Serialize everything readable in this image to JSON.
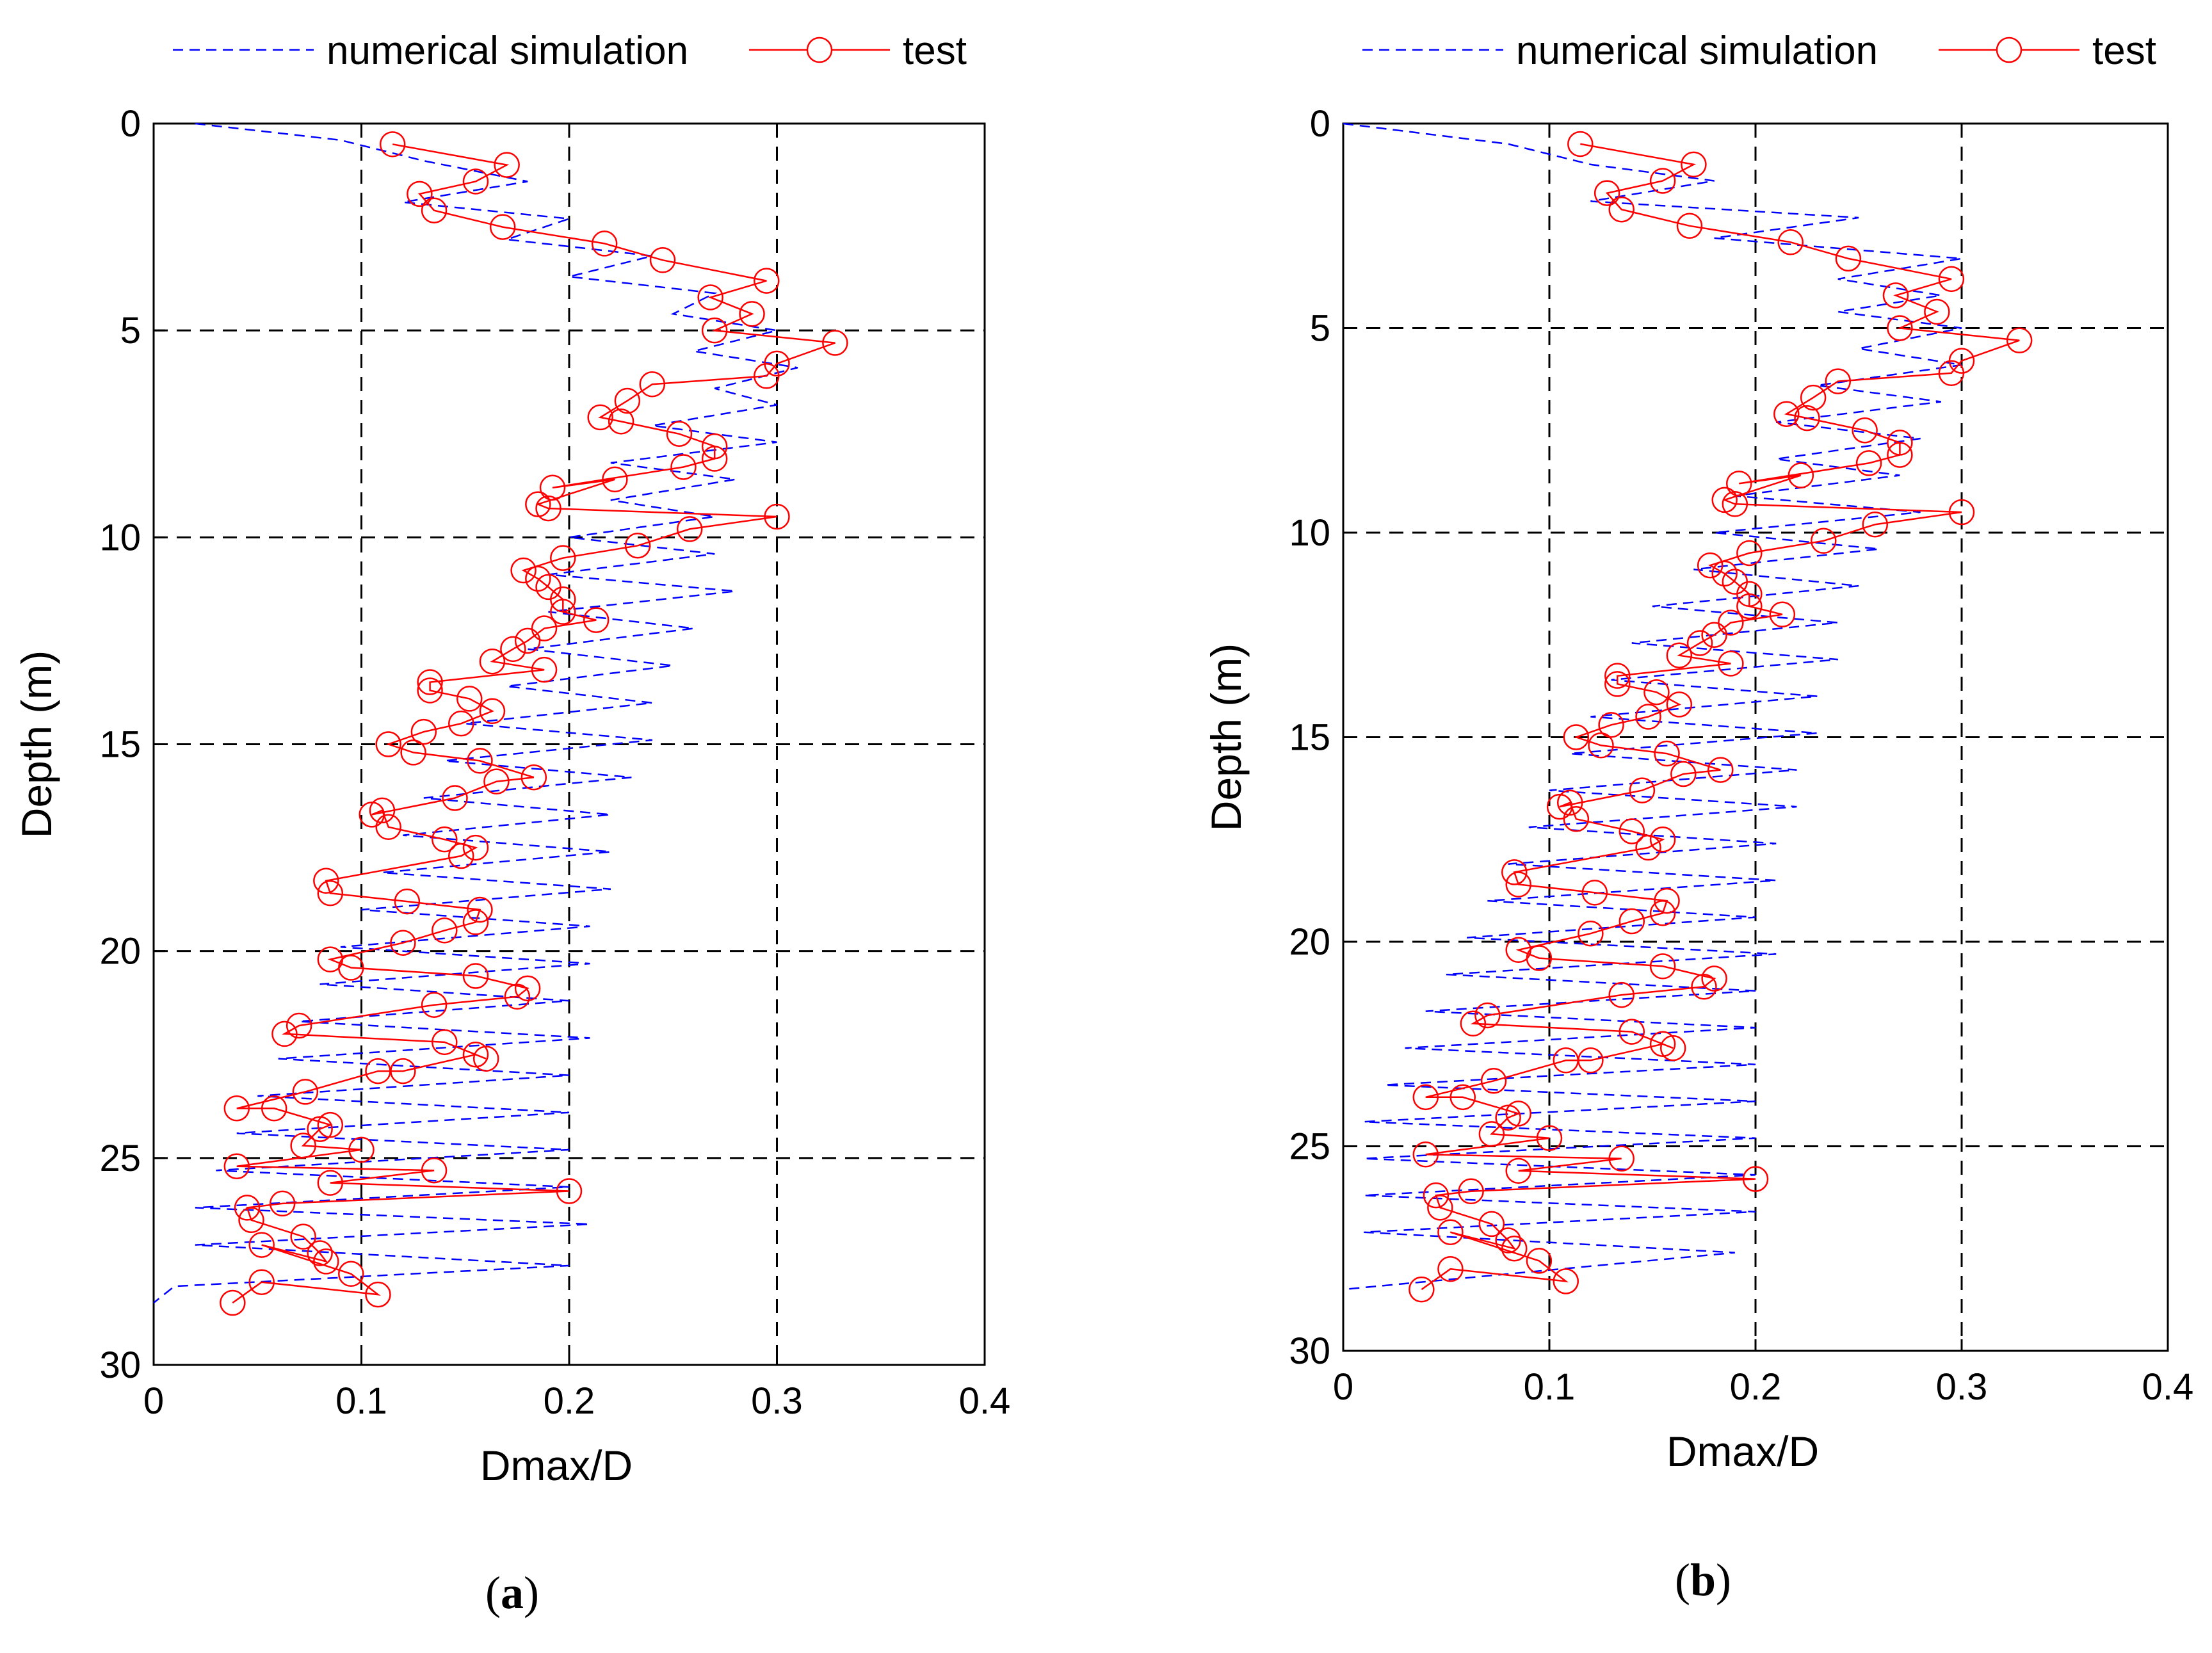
{
  "colors": {
    "simulation": "#0000ff",
    "test": "#ff0000",
    "axis": "#000000",
    "grid": "#000000"
  },
  "chart_data": [
    {
      "type": "line",
      "panel_label": "a",
      "xlabel": "Dmax/D",
      "ylabel": "Depth (m)",
      "xlim": [
        0,
        0.4
      ],
      "ylim": [
        0,
        30
      ],
      "y_inverted": true,
      "xticks": [
        0,
        0.1,
        0.2,
        0.3,
        0.4
      ],
      "xtick_labels": [
        "0",
        "0.1",
        "0.2",
        "0.3",
        "0.4"
      ],
      "yticks": [
        0,
        5,
        10,
        15,
        20,
        25,
        30
      ],
      "ytick_labels": [
        "0",
        "5",
        "10",
        "15",
        "20",
        "25",
        "30"
      ],
      "grid": true,
      "legend": "top",
      "series": [
        {
          "name": "numerical simulation",
          "style": "dashed",
          "color": "#0000ff",
          "x": [
            0.02,
            0.09,
            0.13,
            0.18,
            0.12,
            0.2,
            0.17,
            0.24,
            0.2,
            0.27,
            0.25,
            0.3,
            0.26,
            0.31,
            0.27,
            0.3,
            0.24,
            0.3,
            0.22,
            0.28,
            0.22,
            0.27,
            0.2,
            0.27,
            0.19,
            0.28,
            0.19,
            0.26,
            0.18,
            0.25,
            0.17,
            0.24,
            0.15,
            0.24,
            0.14,
            0.23,
            0.13,
            0.22,
            0.12,
            0.22,
            0.11,
            0.22,
            0.1,
            0.21,
            0.09,
            0.21,
            0.08,
            0.2,
            0.07,
            0.21,
            0.06,
            0.2,
            0.05,
            0.2,
            0.04,
            0.2,
            0.03,
            0.2,
            0.02,
            0.21,
            0.02,
            0.2,
            0.01,
            0.0
          ],
          "y": [
            0.0,
            0.4,
            0.9,
            1.4,
            1.9,
            2.3,
            2.8,
            3.2,
            3.7,
            4.1,
            4.6,
            5.0,
            5.5,
            5.9,
            6.4,
            6.8,
            7.3,
            7.7,
            8.2,
            8.6,
            9.1,
            9.5,
            10.0,
            10.4,
            10.9,
            11.3,
            11.8,
            12.2,
            12.7,
            13.1,
            13.6,
            14.0,
            14.5,
            14.9,
            15.4,
            15.8,
            16.3,
            16.7,
            17.2,
            17.6,
            18.1,
            18.5,
            19.0,
            19.4,
            19.9,
            20.3,
            20.8,
            21.2,
            21.7,
            22.1,
            22.6,
            23.0,
            23.5,
            23.9,
            24.4,
            24.8,
            25.3,
            25.7,
            26.2,
            26.6,
            27.1,
            27.6,
            28.1,
            28.5
          ]
        },
        {
          "name": "test",
          "style": "solid-circle",
          "color": "#ff0000",
          "x": [
            0.115,
            0.17,
            0.155,
            0.128,
            0.135,
            0.168,
            0.217,
            0.245,
            0.295,
            0.268,
            0.288,
            0.27,
            0.328,
            0.3,
            0.295,
            0.24,
            0.228,
            0.215,
            0.225,
            0.253,
            0.27,
            0.27,
            0.255,
            0.192,
            0.222,
            0.185,
            0.19,
            0.3,
            0.258,
            0.233,
            0.197,
            0.178,
            0.185,
            0.19,
            0.197,
            0.197,
            0.213,
            0.188,
            0.18,
            0.173,
            0.163,
            0.188,
            0.133,
            0.133,
            0.152,
            0.163,
            0.148,
            0.13,
            0.113,
            0.125,
            0.157,
            0.183,
            0.165,
            0.145,
            0.105,
            0.11,
            0.113,
            0.14,
            0.155,
            0.148,
            0.083,
            0.085,
            0.122,
            0.157,
            0.155,
            0.14,
            0.12,
            0.085,
            0.095,
            0.155,
            0.18,
            0.175,
            0.135,
            0.07,
            0.063,
            0.14,
            0.16,
            0.155,
            0.12,
            0.108,
            0.073,
            0.04,
            0.058,
            0.085,
            0.08,
            0.072,
            0.1,
            0.04,
            0.135,
            0.085,
            0.2,
            0.062,
            0.045,
            0.047,
            0.072,
            0.08,
            0.083,
            0.052,
            0.095,
            0.108,
            0.052,
            0.038
          ],
          "y": [
            0.5,
            1.0,
            1.4,
            1.7,
            2.1,
            2.5,
            2.9,
            3.3,
            3.8,
            4.2,
            4.6,
            5.0,
            5.3,
            5.8,
            6.1,
            6.3,
            6.7,
            7.1,
            7.2,
            7.5,
            7.8,
            8.1,
            8.3,
            8.8,
            8.6,
            9.2,
            9.3,
            9.5,
            9.8,
            10.2,
            10.5,
            10.8,
            11.0,
            11.2,
            11.5,
            11.8,
            12.0,
            12.2,
            12.5,
            12.7,
            13.0,
            13.2,
            13.5,
            13.7,
            13.9,
            14.2,
            14.5,
            14.7,
            15.0,
            15.2,
            15.4,
            15.8,
            15.9,
            16.3,
            16.7,
            16.6,
            17.0,
            17.3,
            17.5,
            17.7,
            18.3,
            18.6,
            18.8,
            19.0,
            19.3,
            19.5,
            19.8,
            20.2,
            20.4,
            20.6,
            20.9,
            21.1,
            21.3,
            21.8,
            22.0,
            22.2,
            22.6,
            22.5,
            22.9,
            22.9,
            23.4,
            23.8,
            23.8,
            24.2,
            24.3,
            24.7,
            24.8,
            25.2,
            25.3,
            25.6,
            25.8,
            26.1,
            26.2,
            26.5,
            26.9,
            27.3,
            27.5,
            27.1,
            27.8,
            28.3,
            28.0,
            28.5
          ]
        }
      ]
    },
    {
      "type": "line",
      "panel_label": "b",
      "xlabel": "Dmax/D",
      "ylabel": "Depth (m)",
      "xlim": [
        0,
        0.4
      ],
      "ylim": [
        0,
        30
      ],
      "y_inverted": true,
      "xticks": [
        0,
        0.1,
        0.2,
        0.3,
        0.4
      ],
      "xtick_labels": [
        "0",
        "0.1",
        "0.2",
        "0.3",
        "0.4"
      ],
      "yticks": [
        0,
        5,
        10,
        15,
        20,
        25,
        30
      ],
      "ytick_labels": [
        "0",
        "5",
        "10",
        "15",
        "20",
        "25",
        "30"
      ],
      "grid": true,
      "legend": "top",
      "series": [
        {
          "name": "numerical simulation",
          "style": "dashed",
          "color": "#0000ff",
          "x": [
            0.0,
            0.08,
            0.12,
            0.18,
            0.12,
            0.25,
            0.18,
            0.3,
            0.24,
            0.29,
            0.24,
            0.3,
            0.25,
            0.3,
            0.23,
            0.29,
            0.21,
            0.28,
            0.21,
            0.27,
            0.19,
            0.28,
            0.18,
            0.26,
            0.17,
            0.25,
            0.15,
            0.24,
            0.14,
            0.24,
            0.13,
            0.23,
            0.12,
            0.23,
            0.11,
            0.22,
            0.1,
            0.22,
            0.09,
            0.21,
            0.08,
            0.21,
            0.07,
            0.2,
            0.06,
            0.21,
            0.05,
            0.2,
            0.04,
            0.2,
            0.03,
            0.2,
            0.02,
            0.2,
            0.01,
            0.2,
            0.01,
            0.2,
            0.01,
            0.2,
            0.01,
            0.19,
            0.0
          ],
          "y": [
            0.0,
            0.5,
            1.0,
            1.4,
            1.9,
            2.3,
            2.8,
            3.3,
            3.8,
            4.2,
            4.6,
            5.0,
            5.5,
            5.9,
            6.4,
            6.8,
            7.3,
            7.7,
            8.2,
            8.6,
            9.1,
            9.5,
            10.0,
            10.4,
            10.9,
            11.3,
            11.8,
            12.2,
            12.7,
            13.1,
            13.6,
            14.0,
            14.5,
            14.9,
            15.4,
            15.8,
            16.3,
            16.7,
            17.2,
            17.6,
            18.1,
            18.5,
            19.0,
            19.4,
            19.9,
            20.3,
            20.8,
            21.2,
            21.7,
            22.1,
            22.6,
            23.0,
            23.5,
            23.9,
            24.4,
            24.8,
            25.3,
            25.7,
            26.2,
            26.6,
            27.1,
            27.6,
            28.5
          ]
        },
        {
          "name": "test",
          "style": "solid-circle",
          "color": "#ff0000",
          "x": [
            0.115,
            0.17,
            0.155,
            0.128,
            0.135,
            0.168,
            0.217,
            0.245,
            0.295,
            0.268,
            0.288,
            0.27,
            0.328,
            0.3,
            0.295,
            0.24,
            0.228,
            0.215,
            0.225,
            0.253,
            0.27,
            0.27,
            0.255,
            0.192,
            0.222,
            0.185,
            0.19,
            0.3,
            0.258,
            0.233,
            0.197,
            0.178,
            0.185,
            0.19,
            0.197,
            0.197,
            0.213,
            0.188,
            0.18,
            0.173,
            0.163,
            0.188,
            0.133,
            0.133,
            0.152,
            0.163,
            0.148,
            0.13,
            0.113,
            0.125,
            0.157,
            0.183,
            0.165,
            0.145,
            0.105,
            0.11,
            0.113,
            0.14,
            0.155,
            0.148,
            0.083,
            0.085,
            0.122,
            0.157,
            0.155,
            0.14,
            0.12,
            0.085,
            0.095,
            0.155,
            0.18,
            0.175,
            0.135,
            0.07,
            0.063,
            0.14,
            0.16,
            0.155,
            0.12,
            0.108,
            0.073,
            0.04,
            0.058,
            0.085,
            0.08,
            0.072,
            0.1,
            0.04,
            0.135,
            0.085,
            0.2,
            0.062,
            0.045,
            0.047,
            0.072,
            0.08,
            0.083,
            0.052,
            0.095,
            0.108,
            0.052,
            0.038
          ],
          "y": [
            0.5,
            1.0,
            1.4,
            1.7,
            2.1,
            2.5,
            2.9,
            3.3,
            3.8,
            4.2,
            4.6,
            5.0,
            5.3,
            5.8,
            6.1,
            6.3,
            6.7,
            7.1,
            7.2,
            7.5,
            7.8,
            8.1,
            8.3,
            8.8,
            8.6,
            9.2,
            9.3,
            9.5,
            9.8,
            10.2,
            10.5,
            10.8,
            11.0,
            11.2,
            11.5,
            11.8,
            12.0,
            12.2,
            12.5,
            12.7,
            13.0,
            13.2,
            13.5,
            13.7,
            13.9,
            14.2,
            14.5,
            14.7,
            15.0,
            15.2,
            15.4,
            15.8,
            15.9,
            16.3,
            16.7,
            16.6,
            17.0,
            17.3,
            17.5,
            17.7,
            18.3,
            18.6,
            18.8,
            19.0,
            19.3,
            19.5,
            19.8,
            20.2,
            20.4,
            20.6,
            20.9,
            21.1,
            21.3,
            21.8,
            22.0,
            22.2,
            22.6,
            22.5,
            22.9,
            22.9,
            23.4,
            23.8,
            23.8,
            24.2,
            24.3,
            24.7,
            24.8,
            25.2,
            25.3,
            25.6,
            25.8,
            26.1,
            26.2,
            26.5,
            26.9,
            27.3,
            27.5,
            27.1,
            27.8,
            28.3,
            28.0,
            28.5
          ]
        }
      ]
    }
  ]
}
